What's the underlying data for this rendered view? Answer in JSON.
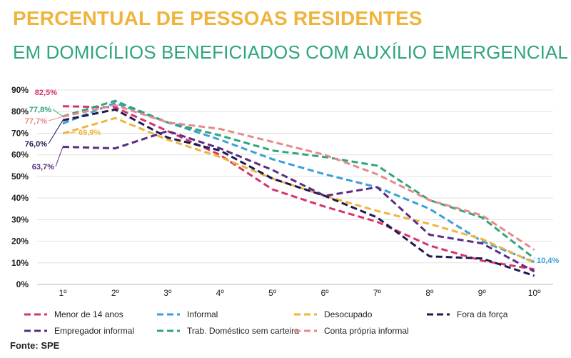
{
  "title": "PERCENTUAL DE PESSOAS RESIDENTES",
  "subtitle": "EM DOMICÍLIOS BENEFICIADOS COM AUXÍLIO EMERGENCIAL",
  "source": "Fonte: SPE",
  "colors": {
    "title": "#f0b43c",
    "subtitle": "#2fa67a"
  },
  "chart_data": {
    "type": "line",
    "x": [
      "1º",
      "2º",
      "3º",
      "4º",
      "5º",
      "6º",
      "7º",
      "8º",
      "9º",
      "10º"
    ],
    "ylim": [
      0,
      90
    ],
    "yticks": [
      "0%",
      "10%",
      "20%",
      "30%",
      "40%",
      "50%",
      "60%",
      "70%",
      "80%",
      "90%"
    ],
    "grid": true,
    "legend_position": "bottom",
    "series": [
      {
        "name": "Menor de 14 anos",
        "color": "#d6336c",
        "values": [
          82.5,
          82,
          71,
          60,
          44,
          36,
          29,
          18,
          11,
          7
        ]
      },
      {
        "name": "Informal",
        "color": "#3a9fd8",
        "values": [
          74.5,
          84,
          75,
          67,
          58,
          51,
          45,
          35,
          20,
          10.4
        ]
      },
      {
        "name": "Desocupado",
        "color": "#f0b43c",
        "values": [
          69.9,
          77,
          67,
          59,
          49,
          41,
          34,
          28,
          21,
          10
        ]
      },
      {
        "name": "Fora da força",
        "color": "#1a1a50",
        "values": [
          76.0,
          81,
          68,
          62,
          49,
          41,
          31,
          13,
          12,
          4
        ]
      },
      {
        "name": "Empregador informal",
        "color": "#5a2d82",
        "values": [
          63.7,
          63,
          71,
          63,
          53,
          41,
          45,
          23,
          19,
          6
        ]
      },
      {
        "name": "Trab. Doméstico sem carteira",
        "color": "#2fa67a",
        "values": [
          77.8,
          85,
          75,
          69,
          62,
          59,
          55,
          39,
          31,
          12
        ]
      },
      {
        "name": "Conta própria informal",
        "color": "#e88a86",
        "values": [
          77.7,
          83,
          75,
          72,
          66,
          60,
          51,
          39,
          32,
          16
        ]
      }
    ],
    "annotations": [
      {
        "series": 0,
        "label": "82,5%"
      },
      {
        "series": 5,
        "label": "77,8%"
      },
      {
        "series": 6,
        "label": "77,7%"
      },
      {
        "series": 2,
        "label": "69,9%"
      },
      {
        "series": 3,
        "label": "76,0%"
      },
      {
        "series": 4,
        "label": "63,7%"
      },
      {
        "series": 1,
        "label": "10,4%"
      }
    ]
  }
}
